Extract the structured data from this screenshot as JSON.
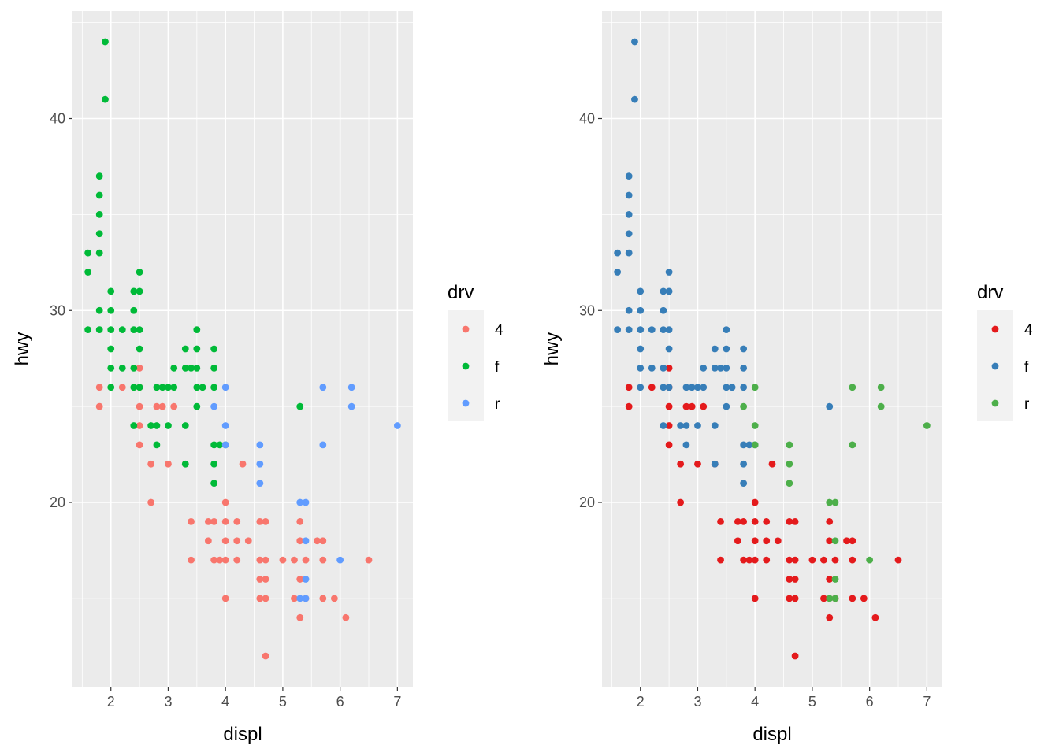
{
  "chart_data": [
    {
      "type": "scatter",
      "xlabel": "displ",
      "ylabel": "hwy",
      "xlim": [
        1.33,
        7.27
      ],
      "ylim": [
        10.4,
        45.6
      ],
      "x_ticks": [
        2,
        3,
        4,
        5,
        6,
        7
      ],
      "y_ticks": [
        20,
        30,
        40
      ],
      "grid": true,
      "legend": {
        "title": "drv",
        "placement": "right",
        "entries": [
          {
            "label": "4",
            "color": "#F8766D"
          },
          {
            "label": "f",
            "color": "#00BA38"
          },
          {
            "label": "r",
            "color": "#619CFF"
          }
        ]
      },
      "series": [
        {
          "name": "4",
          "color": "#F8766D",
          "points": [
            [
              1.8,
              26
            ],
            [
              1.8,
              25
            ],
            [
              2.2,
              26
            ],
            [
              2.5,
              27
            ],
            [
              2.5,
              26
            ],
            [
              2.5,
              25
            ],
            [
              2.5,
              24
            ],
            [
              2.5,
              23
            ],
            [
              2.7,
              22
            ],
            [
              2.7,
              20
            ],
            [
              2.8,
              25
            ],
            [
              2.9,
              25
            ],
            [
              3.0,
              22
            ],
            [
              3.1,
              25
            ],
            [
              3.3,
              22
            ],
            [
              3.4,
              19
            ],
            [
              3.4,
              17
            ],
            [
              3.7,
              19
            ],
            [
              3.7,
              18
            ],
            [
              3.8,
              19
            ],
            [
              3.8,
              17
            ],
            [
              3.9,
              17
            ],
            [
              4.0,
              20
            ],
            [
              4.0,
              19
            ],
            [
              4.0,
              18
            ],
            [
              4.0,
              17
            ],
            [
              4.0,
              15
            ],
            [
              4.2,
              19
            ],
            [
              4.2,
              18
            ],
            [
              4.2,
              17
            ],
            [
              4.3,
              22
            ],
            [
              4.4,
              18
            ],
            [
              4.6,
              19
            ],
            [
              4.6,
              17
            ],
            [
              4.6,
              16
            ],
            [
              4.6,
              15
            ],
            [
              4.7,
              19
            ],
            [
              4.7,
              17
            ],
            [
              4.7,
              16
            ],
            [
              4.7,
              15
            ],
            [
              4.7,
              12
            ],
            [
              5.0,
              17
            ],
            [
              5.2,
              17
            ],
            [
              5.2,
              15
            ],
            [
              5.3,
              19
            ],
            [
              5.3,
              18
            ],
            [
              5.3,
              16
            ],
            [
              5.3,
              14
            ],
            [
              5.4,
              17
            ],
            [
              5.4,
              15
            ],
            [
              5.6,
              18
            ],
            [
              5.7,
              18
            ],
            [
              5.7,
              17
            ],
            [
              5.7,
              15
            ],
            [
              5.9,
              15
            ],
            [
              6.1,
              14
            ],
            [
              6.5,
              17
            ]
          ]
        },
        {
          "name": "f",
          "color": "#00BA38",
          "points": [
            [
              1.6,
              33
            ],
            [
              1.6,
              32
            ],
            [
              1.6,
              29
            ],
            [
              1.8,
              37
            ],
            [
              1.8,
              36
            ],
            [
              1.8,
              35
            ],
            [
              1.8,
              34
            ],
            [
              1.8,
              33
            ],
            [
              1.8,
              30
            ],
            [
              1.8,
              29
            ],
            [
              1.9,
              44
            ],
            [
              1.9,
              41
            ],
            [
              2.0,
              31
            ],
            [
              2.0,
              30
            ],
            [
              2.0,
              29
            ],
            [
              2.0,
              28
            ],
            [
              2.0,
              27
            ],
            [
              2.0,
              26
            ],
            [
              2.2,
              29
            ],
            [
              2.2,
              27
            ],
            [
              2.4,
              31
            ],
            [
              2.4,
              30
            ],
            [
              2.4,
              29
            ],
            [
              2.4,
              27
            ],
            [
              2.4,
              26
            ],
            [
              2.4,
              24
            ],
            [
              2.5,
              32
            ],
            [
              2.5,
              31
            ],
            [
              2.5,
              29
            ],
            [
              2.5,
              28
            ],
            [
              2.5,
              26
            ],
            [
              2.7,
              24
            ],
            [
              2.8,
              26
            ],
            [
              2.8,
              24
            ],
            [
              2.8,
              23
            ],
            [
              2.9,
              26
            ],
            [
              3.0,
              26
            ],
            [
              3.0,
              24
            ],
            [
              3.1,
              27
            ],
            [
              3.1,
              26
            ],
            [
              3.3,
              28
            ],
            [
              3.3,
              27
            ],
            [
              3.3,
              24
            ],
            [
              3.3,
              22
            ],
            [
              3.4,
              27
            ],
            [
              3.5,
              29
            ],
            [
              3.5,
              28
            ],
            [
              3.5,
              27
            ],
            [
              3.5,
              26
            ],
            [
              3.5,
              25
            ],
            [
              3.6,
              26
            ],
            [
              3.8,
              28
            ],
            [
              3.8,
              27
            ],
            [
              3.8,
              26
            ],
            [
              3.8,
              23
            ],
            [
              3.8,
              22
            ],
            [
              3.8,
              21
            ],
            [
              3.9,
              23
            ],
            [
              4.0,
              23
            ],
            [
              5.3,
              25
            ]
          ]
        },
        {
          "name": "r",
          "color": "#619CFF",
          "points": [
            [
              3.8,
              25
            ],
            [
              4.0,
              26
            ],
            [
              4.0,
              24
            ],
            [
              4.0,
              23
            ],
            [
              4.6,
              23
            ],
            [
              4.6,
              22
            ],
            [
              4.6,
              21
            ],
            [
              5.3,
              20
            ],
            [
              5.3,
              15
            ],
            [
              5.4,
              20
            ],
            [
              5.4,
              18
            ],
            [
              5.4,
              16
            ],
            [
              5.4,
              15
            ],
            [
              5.7,
              26
            ],
            [
              5.7,
              23
            ],
            [
              6.0,
              17
            ],
            [
              6.2,
              26
            ],
            [
              6.2,
              25
            ],
            [
              7.0,
              24
            ]
          ]
        }
      ]
    },
    {
      "type": "scatter",
      "xlabel": "displ",
      "ylabel": "hwy",
      "xlim": [
        1.33,
        7.27
      ],
      "ylim": [
        10.4,
        45.6
      ],
      "x_ticks": [
        2,
        3,
        4,
        5,
        6,
        7
      ],
      "y_ticks": [
        20,
        30,
        40
      ],
      "grid": true,
      "legend": {
        "title": "drv",
        "placement": "right",
        "entries": [
          {
            "label": "4",
            "color": "#E41A1C"
          },
          {
            "label": "f",
            "color": "#377EB8"
          },
          {
            "label": "r",
            "color": "#4DAF4A"
          }
        ]
      },
      "series": [
        {
          "name": "4",
          "color": "#E41A1C",
          "points": [
            [
              1.8,
              26
            ],
            [
              1.8,
              25
            ],
            [
              2.2,
              26
            ],
            [
              2.5,
              27
            ],
            [
              2.5,
              26
            ],
            [
              2.5,
              25
            ],
            [
              2.5,
              24
            ],
            [
              2.5,
              23
            ],
            [
              2.7,
              22
            ],
            [
              2.7,
              20
            ],
            [
              2.8,
              25
            ],
            [
              2.9,
              25
            ],
            [
              3.0,
              22
            ],
            [
              3.1,
              25
            ],
            [
              3.3,
              22
            ],
            [
              3.4,
              19
            ],
            [
              3.4,
              17
            ],
            [
              3.7,
              19
            ],
            [
              3.7,
              18
            ],
            [
              3.8,
              19
            ],
            [
              3.8,
              17
            ],
            [
              3.9,
              17
            ],
            [
              4.0,
              20
            ],
            [
              4.0,
              19
            ],
            [
              4.0,
              18
            ],
            [
              4.0,
              17
            ],
            [
              4.0,
              15
            ],
            [
              4.2,
              19
            ],
            [
              4.2,
              18
            ],
            [
              4.2,
              17
            ],
            [
              4.3,
              22
            ],
            [
              4.4,
              18
            ],
            [
              4.6,
              19
            ],
            [
              4.6,
              17
            ],
            [
              4.6,
              16
            ],
            [
              4.6,
              15
            ],
            [
              4.7,
              19
            ],
            [
              4.7,
              17
            ],
            [
              4.7,
              16
            ],
            [
              4.7,
              15
            ],
            [
              4.7,
              12
            ],
            [
              5.0,
              17
            ],
            [
              5.2,
              17
            ],
            [
              5.2,
              15
            ],
            [
              5.3,
              19
            ],
            [
              5.3,
              18
            ],
            [
              5.3,
              16
            ],
            [
              5.3,
              14
            ],
            [
              5.4,
              17
            ],
            [
              5.4,
              15
            ],
            [
              5.6,
              18
            ],
            [
              5.7,
              18
            ],
            [
              5.7,
              17
            ],
            [
              5.7,
              15
            ],
            [
              5.9,
              15
            ],
            [
              6.1,
              14
            ],
            [
              6.5,
              17
            ]
          ]
        },
        {
          "name": "f",
          "color": "#377EB8",
          "points": [
            [
              1.6,
              33
            ],
            [
              1.6,
              32
            ],
            [
              1.6,
              29
            ],
            [
              1.8,
              37
            ],
            [
              1.8,
              36
            ],
            [
              1.8,
              35
            ],
            [
              1.8,
              34
            ],
            [
              1.8,
              33
            ],
            [
              1.8,
              30
            ],
            [
              1.8,
              29
            ],
            [
              1.9,
              44
            ],
            [
              1.9,
              41
            ],
            [
              2.0,
              31
            ],
            [
              2.0,
              30
            ],
            [
              2.0,
              29
            ],
            [
              2.0,
              28
            ],
            [
              2.0,
              27
            ],
            [
              2.0,
              26
            ],
            [
              2.2,
              29
            ],
            [
              2.2,
              27
            ],
            [
              2.4,
              31
            ],
            [
              2.4,
              30
            ],
            [
              2.4,
              29
            ],
            [
              2.4,
              27
            ],
            [
              2.4,
              26
            ],
            [
              2.4,
              24
            ],
            [
              2.5,
              32
            ],
            [
              2.5,
              31
            ],
            [
              2.5,
              29
            ],
            [
              2.5,
              28
            ],
            [
              2.5,
              26
            ],
            [
              2.7,
              24
            ],
            [
              2.8,
              26
            ],
            [
              2.8,
              24
            ],
            [
              2.8,
              23
            ],
            [
              2.9,
              26
            ],
            [
              3.0,
              26
            ],
            [
              3.0,
              24
            ],
            [
              3.1,
              27
            ],
            [
              3.1,
              26
            ],
            [
              3.3,
              28
            ],
            [
              3.3,
              27
            ],
            [
              3.3,
              24
            ],
            [
              3.3,
              22
            ],
            [
              3.4,
              27
            ],
            [
              3.5,
              29
            ],
            [
              3.5,
              28
            ],
            [
              3.5,
              27
            ],
            [
              3.5,
              26
            ],
            [
              3.5,
              25
            ],
            [
              3.6,
              26
            ],
            [
              3.8,
              28
            ],
            [
              3.8,
              27
            ],
            [
              3.8,
              26
            ],
            [
              3.8,
              23
            ],
            [
              3.8,
              22
            ],
            [
              3.8,
              21
            ],
            [
              3.9,
              23
            ],
            [
              4.0,
              23
            ],
            [
              5.3,
              25
            ]
          ]
        },
        {
          "name": "r",
          "color": "#4DAF4A",
          "points": [
            [
              3.8,
              25
            ],
            [
              4.0,
              26
            ],
            [
              4.0,
              24
            ],
            [
              4.0,
              23
            ],
            [
              4.6,
              23
            ],
            [
              4.6,
              22
            ],
            [
              4.6,
              21
            ],
            [
              5.3,
              20
            ],
            [
              5.3,
              15
            ],
            [
              5.4,
              20
            ],
            [
              5.4,
              18
            ],
            [
              5.4,
              16
            ],
            [
              5.4,
              15
            ],
            [
              5.7,
              26
            ],
            [
              5.7,
              23
            ],
            [
              6.0,
              17
            ],
            [
              6.2,
              26
            ],
            [
              6.2,
              25
            ],
            [
              7.0,
              24
            ]
          ]
        }
      ]
    }
  ]
}
